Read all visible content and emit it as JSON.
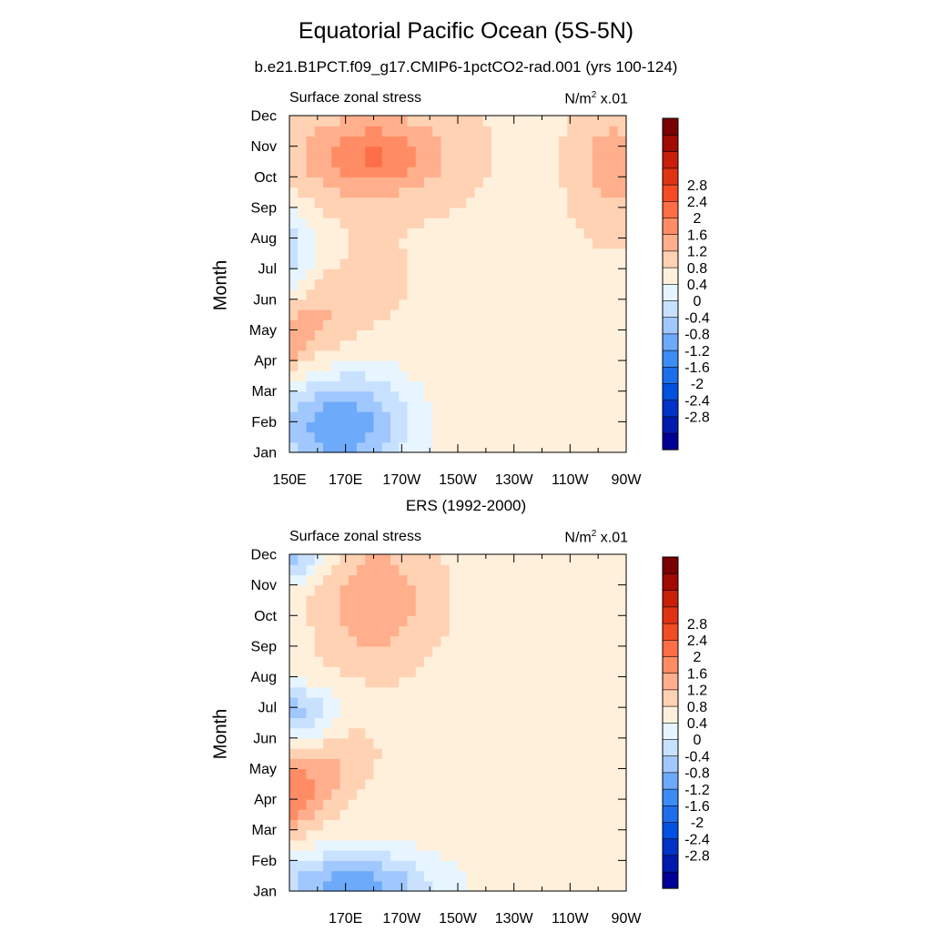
{
  "figure": {
    "title": "Equatorial Pacific Ocean (5S-5N)"
  },
  "colorbar": {
    "colors": [
      "#000096",
      "#0019AF",
      "#0032C8",
      "#0050E1",
      "#1E6EEB",
      "#3C8CF5",
      "#6EAAFA",
      "#A0C8FF",
      "#C8E1FF",
      "#E6F5FF",
      "#FFF0DC",
      "#FFD2B4",
      "#FFAF8C",
      "#FF8C64",
      "#FF6E46",
      "#F54B23",
      "#E13214",
      "#C81E0A",
      "#A00A00",
      "#780000"
    ],
    "labels": [
      "-2.8",
      "-2.4",
      "-2",
      "-1.6",
      "-1.2",
      "-0.8",
      "-0.4",
      "0",
      "0.4",
      "0.8",
      "1.2",
      "1.6",
      "2",
      "2.4",
      "2.8"
    ]
  },
  "chart_data": [
    {
      "type": "contour",
      "subtitle": "b.e21.B1PCT.f09_g17.CMIP6-1pctCO2-rad.001 (yrs 100-124)",
      "left_label": "Surface zonal stress",
      "right_label_base": "N/m",
      "right_label_sup": "2",
      "right_label_suffix": " x.01",
      "ylabel": "Month",
      "xlabel": "",
      "xticks": [
        "150E",
        "170E",
        "170W",
        "150W",
        "130W",
        "110W",
        "90W"
      ],
      "yticks": [
        "Jan",
        "Feb",
        "Mar",
        "Apr",
        "May",
        "Jun",
        "Jul",
        "Aug",
        "Sep",
        "Oct",
        "Nov",
        "Dec"
      ],
      "xlim_lon_east": [
        150,
        270
      ],
      "ylim_month": [
        1,
        12
      ],
      "levels": [
        -2.8,
        -2.4,
        -2.0,
        -1.6,
        -1.2,
        -0.8,
        -0.4,
        0,
        0.4,
        0.8,
        1.2,
        1.6,
        2.0,
        2.4,
        2.8
      ],
      "features": [
        {
          "lon": 128,
          "month": 7.4,
          "amp": -2.1,
          "slon": 24,
          "smonth": 1.2,
          "tilt": -0.045
        },
        {
          "lon": 145,
          "month": 8.2,
          "amp": -0.7,
          "slon": 18,
          "smonth": 0.9,
          "tilt": -0.03
        },
        {
          "lon": 127,
          "month": 4.2,
          "amp": 1.75,
          "slon": 24,
          "smonth": 1.0,
          "tilt": 0.035
        },
        {
          "lon": 168,
          "month": 1.9,
          "amp": -1.9,
          "slon": 18,
          "smonth": 1.3,
          "tilt": 0
        },
        {
          "lon": 180,
          "month": 10.7,
          "amp": 1.3,
          "slon": 17,
          "smonth": 0.9,
          "tilt": 0
        },
        {
          "lon": 160,
          "month": 6.0,
          "amp": 0.7,
          "slon": 14,
          "smonth": 1.7,
          "tilt": 0
        },
        {
          "lon": 265,
          "month": 10.4,
          "amp": 0.7,
          "slon": 8,
          "smonth": 1.2,
          "tilt": 0
        }
      ],
      "background": 0.35
    },
    {
      "type": "contour",
      "subtitle": "ERS (1992-2000)",
      "left_label": "Surface zonal stress",
      "right_label_base": "N/m",
      "right_label_sup": "2",
      "right_label_suffix": " x.01",
      "ylabel": "Month",
      "xlabel": "",
      "xticks": [
        "170E",
        "170W",
        "150W",
        "130W",
        "110W",
        "90W"
      ],
      "yticks": [
        "Jan",
        "Feb",
        "Mar",
        "Apr",
        "May",
        "Jun",
        "Jul",
        "Aug",
        "Sep",
        "Oct",
        "Nov",
        "Dec"
      ],
      "xlim_lon_east": [
        150,
        270
      ],
      "ylim_month": [
        1,
        12
      ],
      "levels": [
        -2.8,
        -2.4,
        -2.0,
        -1.6,
        -1.2,
        -0.8,
        -0.4,
        0,
        0.4,
        0.8,
        1.2,
        1.6,
        2.0,
        2.4,
        2.8
      ],
      "features": [
        {
          "lon": 135,
          "month": 3.6,
          "amp": 1.85,
          "slon": 22,
          "smonth": 1.0,
          "tilt": 0.04
        },
        {
          "lon": 128,
          "month": 7.0,
          "amp": -1.5,
          "slon": 22,
          "smonth": 0.5,
          "tilt": 0
        },
        {
          "lon": 145,
          "month": 11.8,
          "amp": -1.4,
          "slon": 12,
          "smonth": 0.5,
          "tilt": 0
        },
        {
          "lon": 125,
          "month": 10.0,
          "amp": -0.7,
          "slon": 16,
          "smonth": 1.4,
          "tilt": 0
        },
        {
          "lon": 172,
          "month": 1.3,
          "amp": -1.6,
          "slon": 20,
          "smonth": 0.7,
          "tilt": 0
        },
        {
          "lon": 180,
          "month": 10.5,
          "amp": 0.9,
          "slon": 16,
          "smonth": 1.6,
          "tilt": 0
        },
        {
          "lon": 155,
          "month": 6.3,
          "amp": -0.6,
          "slon": 6,
          "smonth": 0.8,
          "tilt": 0
        }
      ],
      "background": 0.2
    }
  ]
}
